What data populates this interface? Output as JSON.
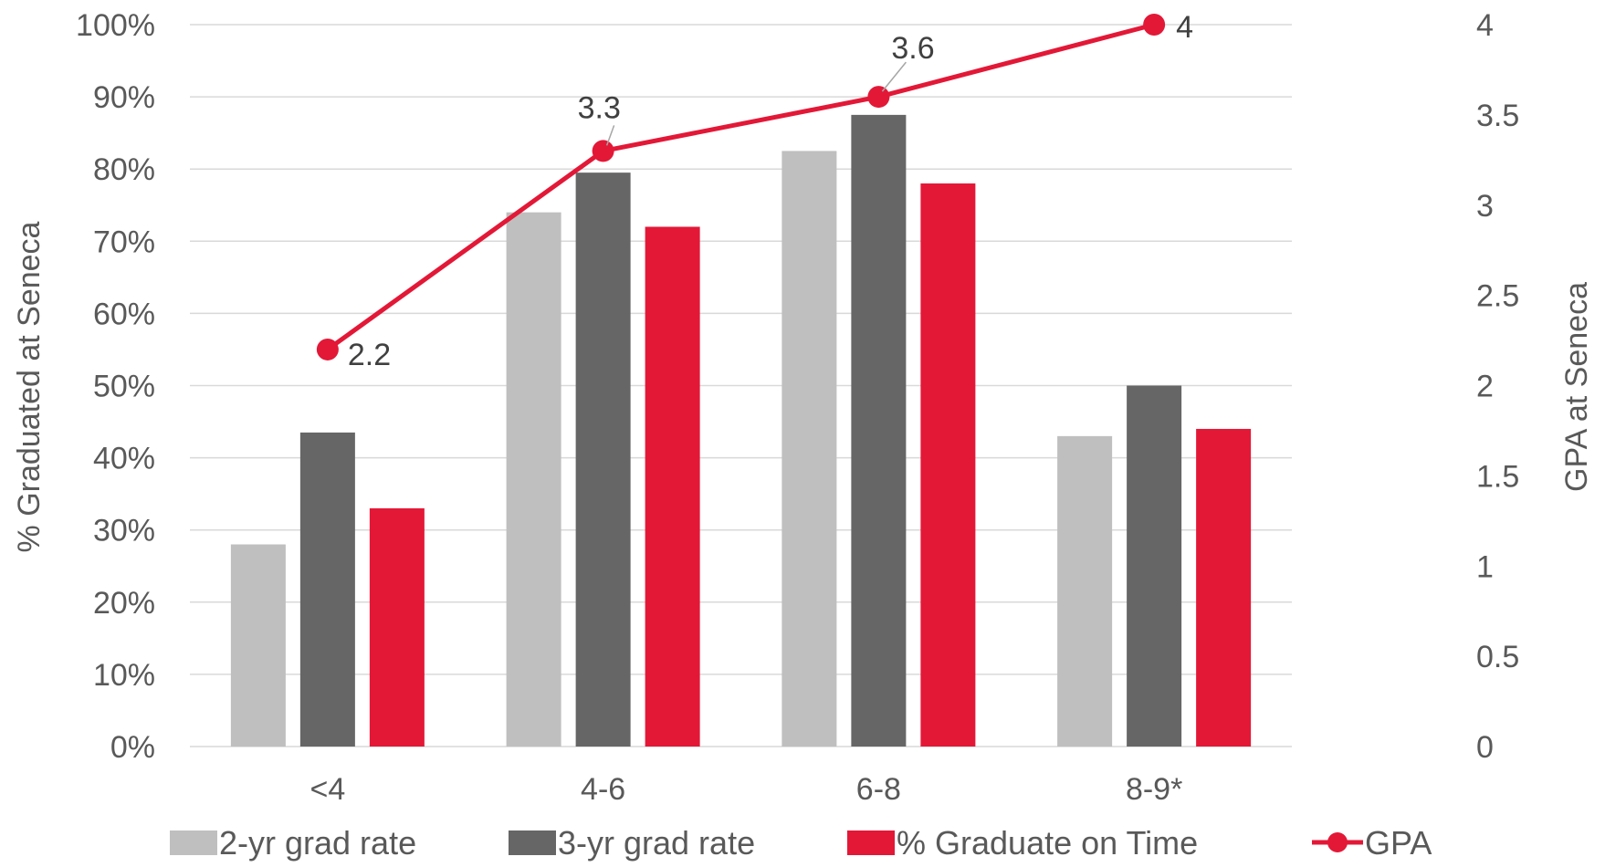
{
  "chart_data": {
    "type": "bar",
    "categories": [
      "<4",
      "4-6",
      "6-8",
      "8-9*"
    ],
    "series": [
      {
        "name": "2-yr grad rate",
        "kind": "bar",
        "axis": "left",
        "color": "#bfbfbf",
        "values": [
          0.28,
          0.74,
          0.825,
          0.43
        ]
      },
      {
        "name": "3-yr grad rate",
        "kind": "bar",
        "axis": "left",
        "color": "#666666",
        "values": [
          0.435,
          0.795,
          0.875,
          0.5
        ]
      },
      {
        "name": "% Graduate on Time",
        "kind": "bar",
        "axis": "left",
        "color": "#e31837",
        "values": [
          0.33,
          0.72,
          0.78,
          0.44
        ]
      },
      {
        "name": "GPA",
        "kind": "line",
        "axis": "right",
        "color": "#e31837",
        "values": [
          2.2,
          3.3,
          3.6,
          4
        ],
        "labels": [
          "2.2",
          "3.3",
          "3.6",
          "4"
        ]
      }
    ],
    "y_left": {
      "label": "% Graduated at Seneca",
      "ylim": [
        0,
        1
      ],
      "ticks": [
        0,
        0.1,
        0.2,
        0.3,
        0.4,
        0.5,
        0.6,
        0.7,
        0.8,
        0.9,
        1.0
      ],
      "tick_labels": [
        "0%",
        "10%",
        "20%",
        "30%",
        "40%",
        "50%",
        "60%",
        "70%",
        "80%",
        "90%",
        "100%"
      ]
    },
    "y_right": {
      "label": "GPA at Seneca",
      "ylim": [
        0,
        4
      ],
      "ticks": [
        0,
        0.5,
        1,
        1.5,
        2,
        2.5,
        3,
        3.5,
        4
      ],
      "tick_labels": [
        "0",
        "0.5",
        "1",
        "1.5",
        "2",
        "2.5",
        "3",
        "3.5",
        "4"
      ]
    },
    "grid": true,
    "legend": "bottom",
    "colors": {
      "gridline": "#d9d9d9",
      "text": "#595959",
      "label": "#404040"
    }
  }
}
